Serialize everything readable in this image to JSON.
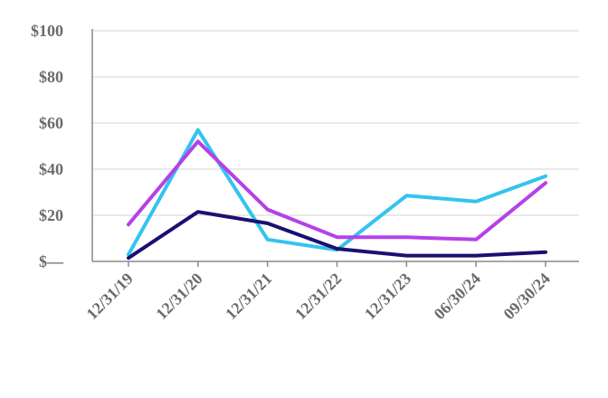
{
  "chart_data": {
    "type": "line",
    "categories": [
      "12/31/19",
      "12/31/20",
      "12/31/21",
      "12/31/22",
      "12/31/23",
      "06/30/24",
      "09/30/24"
    ],
    "y_tick_labels": [
      "$—",
      "$20",
      "$40",
      "$60",
      "$80",
      "$100"
    ],
    "y_ticks": [
      0,
      20,
      40,
      60,
      80,
      100
    ],
    "ylim": [
      0,
      100
    ],
    "grid": true,
    "series": [
      {
        "color": "#33c3f0",
        "values": [
          3,
          57,
          9.5,
          5,
          28.5,
          26,
          37
        ]
      },
      {
        "color": "#b541e8",
        "values": [
          16,
          52,
          22.5,
          10.5,
          10.5,
          9.5,
          34
        ]
      },
      {
        "color": "#1b0f73",
        "values": [
          1.5,
          21.5,
          16.5,
          5.5,
          2.5,
          2.5,
          4
        ]
      }
    ]
  }
}
